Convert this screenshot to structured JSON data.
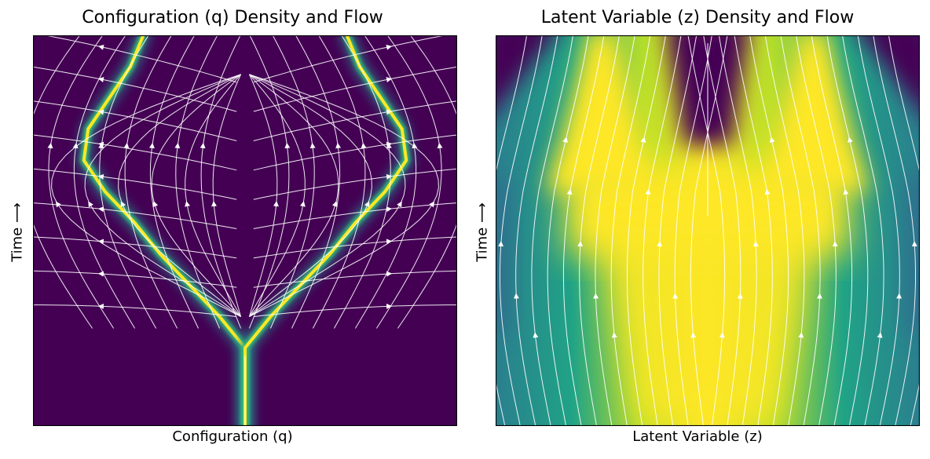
{
  "chart_data": [
    {
      "type": "heatmap",
      "title": "Configuration (q) Density and Flow",
      "xlabel": "Configuration (q)",
      "ylabel": "Time ⟶",
      "xticks": "none",
      "yticks": "none",
      "colormap": "viridis",
      "description_of_marks": "density concentrated along a single branch that splits into two diverging paths over time; white streamlines with arrows show the flow field",
      "branch_points": {
        "t": [
          0.0,
          0.12,
          0.2,
          0.28,
          0.36,
          0.44,
          0.52,
          0.6,
          0.68,
          0.76,
          0.84,
          0.92,
          1.0
        ],
        "q": [
          0.5,
          0.5,
          0.5,
          0.44,
          0.37,
          0.3,
          0.24,
          0.17,
          0.12,
          0.13,
          0.18,
          0.23,
          0.26
        ]
      },
      "colors": {
        "background": "#440154",
        "branch_outer": "#21918c",
        "branch_core": "#fde725",
        "streamline": "#ffffff"
      }
    },
    {
      "type": "heatmap",
      "title": "Latent Variable (z) Density and Flow",
      "xlabel": "Latent Variable (z)",
      "ylabel": "Time ⟶",
      "xticks": "none",
      "yticks": "none",
      "colormap": "viridis",
      "description_of_marks": "broad density band widening with time, then splitting into two lobes near the top; white streamlines with arrows show the flow field",
      "lobe_centers_top": [
        0.25,
        0.75
      ],
      "colors": {
        "low": "#440154",
        "mid": "#21918c",
        "high": "#fde725",
        "streamline": "#ffffff"
      }
    }
  ]
}
